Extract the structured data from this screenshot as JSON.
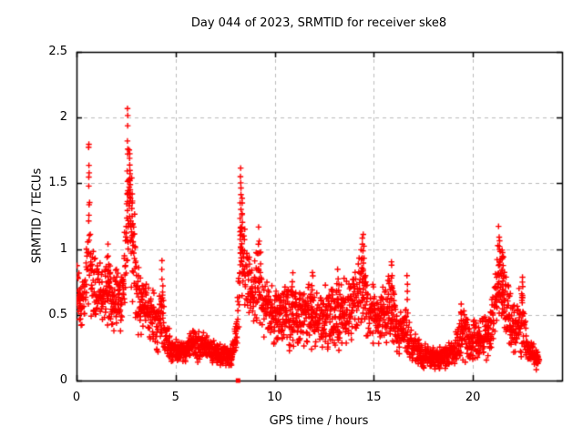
{
  "window": {
    "background": "#ffffff"
  },
  "chart_data": {
    "type": "scatter",
    "title": "Day 044 of 2023, SRMTID for receiver ske8",
    "xlabel": "GPS time / hours",
    "ylabel": "SRMTID / TECUs",
    "xlim": [
      0,
      24.5
    ],
    "ylim": [
      0,
      2.5
    ],
    "xticks": [
      0,
      5,
      10,
      15,
      20
    ],
    "yticks": [
      0,
      0.5,
      1,
      1.5,
      2,
      2.5
    ],
    "grid": {
      "show": true,
      "style": "dashed"
    },
    "legend": "none",
    "marker": {
      "shape": "plus",
      "size": 7
    },
    "colors": {
      "marker": "#ff0000",
      "grid": "#bbbbbb",
      "axis": "#000000",
      "text": "#000000",
      "background": "#ffffff"
    },
    "x_start": 0.03,
    "x_end": 23.35,
    "sampling": {
      "dt": 0.01667,
      "points_per_epoch": 2,
      "x_jitter": 0.022,
      "seed": 2023044
    },
    "envelope": [
      [
        0.0,
        0.3,
        0.92
      ],
      [
        0.3,
        0.38,
        0.82
      ],
      [
        0.5,
        0.45,
        1.05
      ],
      [
        0.62,
        0.5,
        1.62
      ],
      [
        0.75,
        0.45,
        1.15
      ],
      [
        1.0,
        0.4,
        1.0
      ],
      [
        1.3,
        0.35,
        0.9
      ],
      [
        1.55,
        0.4,
        1.05
      ],
      [
        1.8,
        0.32,
        0.82
      ],
      [
        2.05,
        0.35,
        0.95
      ],
      [
        2.3,
        0.35,
        0.92
      ],
      [
        2.5,
        0.55,
        1.45
      ],
      [
        2.62,
        0.75,
        1.95
      ],
      [
        2.75,
        0.6,
        1.72
      ],
      [
        2.9,
        0.45,
        1.42
      ],
      [
        3.1,
        0.3,
        0.95
      ],
      [
        3.4,
        0.25,
        0.88
      ],
      [
        3.7,
        0.22,
        0.78
      ],
      [
        4.0,
        0.2,
        0.72
      ],
      [
        4.3,
        0.2,
        0.88
      ],
      [
        4.55,
        0.15,
        0.45
      ],
      [
        4.9,
        0.13,
        0.33
      ],
      [
        5.5,
        0.13,
        0.3
      ],
      [
        5.9,
        0.13,
        0.45
      ],
      [
        6.3,
        0.12,
        0.4
      ],
      [
        6.7,
        0.12,
        0.33
      ],
      [
        7.2,
        0.1,
        0.28
      ],
      [
        7.8,
        0.1,
        0.27
      ],
      [
        8.1,
        0.15,
        0.55
      ],
      [
        8.3,
        0.55,
        1.58
      ],
      [
        8.45,
        0.5,
        1.32
      ],
      [
        8.65,
        0.45,
        1.02
      ],
      [
        8.95,
        0.4,
        1.0
      ],
      [
        9.2,
        0.4,
        1.18
      ],
      [
        9.5,
        0.3,
        0.88
      ],
      [
        9.8,
        0.25,
        0.76
      ],
      [
        10.2,
        0.2,
        0.7
      ],
      [
        10.7,
        0.22,
        0.76
      ],
      [
        11.2,
        0.25,
        0.73
      ],
      [
        11.7,
        0.22,
        0.78
      ],
      [
        12.2,
        0.22,
        0.72
      ],
      [
        12.7,
        0.2,
        0.76
      ],
      [
        13.2,
        0.22,
        0.78
      ],
      [
        13.7,
        0.25,
        0.82
      ],
      [
        14.1,
        0.3,
        0.95
      ],
      [
        14.45,
        0.35,
        1.12
      ],
      [
        14.8,
        0.28,
        0.76
      ],
      [
        15.2,
        0.25,
        0.7
      ],
      [
        15.6,
        0.22,
        0.76
      ],
      [
        15.9,
        0.25,
        0.94
      ],
      [
        16.2,
        0.15,
        0.55
      ],
      [
        16.6,
        0.14,
        0.68
      ],
      [
        16.9,
        0.12,
        0.4
      ],
      [
        17.4,
        0.09,
        0.3
      ],
      [
        18.0,
        0.08,
        0.26
      ],
      [
        18.6,
        0.09,
        0.28
      ],
      [
        19.1,
        0.1,
        0.36
      ],
      [
        19.4,
        0.12,
        0.58
      ],
      [
        19.8,
        0.12,
        0.5
      ],
      [
        20.3,
        0.13,
        0.48
      ],
      [
        20.8,
        0.15,
        0.58
      ],
      [
        21.1,
        0.25,
        0.85
      ],
      [
        21.3,
        0.4,
        1.18
      ],
      [
        21.6,
        0.35,
        0.95
      ],
      [
        21.9,
        0.2,
        0.7
      ],
      [
        22.2,
        0.15,
        0.6
      ],
      [
        22.5,
        0.15,
        0.85
      ],
      [
        22.8,
        0.1,
        0.35
      ],
      [
        23.1,
        0.08,
        0.28
      ],
      [
        23.35,
        0.08,
        0.22
      ]
    ],
    "spikes": [
      [
        0.63,
        1.1,
        1.86,
        10
      ],
      [
        1.6,
        0.7,
        1.05,
        6
      ],
      [
        2.58,
        1.2,
        2.11,
        12
      ],
      [
        2.68,
        1.3,
        1.76,
        14
      ],
      [
        2.82,
        1.1,
        1.45,
        8
      ],
      [
        4.33,
        0.5,
        0.93,
        6
      ],
      [
        8.28,
        0.9,
        1.62,
        14
      ],
      [
        8.36,
        0.8,
        1.45,
        10
      ],
      [
        9.2,
        0.6,
        1.2,
        8
      ],
      [
        10.9,
        0.55,
        0.85,
        6
      ],
      [
        11.9,
        0.55,
        0.85,
        6
      ],
      [
        13.2,
        0.55,
        0.85,
        5
      ],
      [
        14.45,
        0.6,
        1.15,
        10
      ],
      [
        15.9,
        0.5,
        0.95,
        8
      ],
      [
        16.7,
        0.55,
        0.85,
        4
      ],
      [
        19.4,
        0.35,
        0.6,
        6
      ],
      [
        21.32,
        0.6,
        1.2,
        10
      ],
      [
        21.5,
        0.5,
        0.95,
        10
      ],
      [
        22.5,
        0.45,
        0.85,
        6
      ]
    ],
    "special_points": [
      {
        "x": 8.15,
        "y": 0.0,
        "marker": "filled-square"
      }
    ],
    "notable_peaks": [
      [
        0.63,
        1.85
      ],
      [
        2.58,
        2.11
      ],
      [
        8.3,
        1.62
      ],
      [
        9.2,
        1.2
      ],
      [
        14.45,
        1.15
      ],
      [
        15.9,
        0.95
      ],
      [
        21.3,
        1.2
      ],
      [
        22.5,
        0.85
      ]
    ]
  }
}
